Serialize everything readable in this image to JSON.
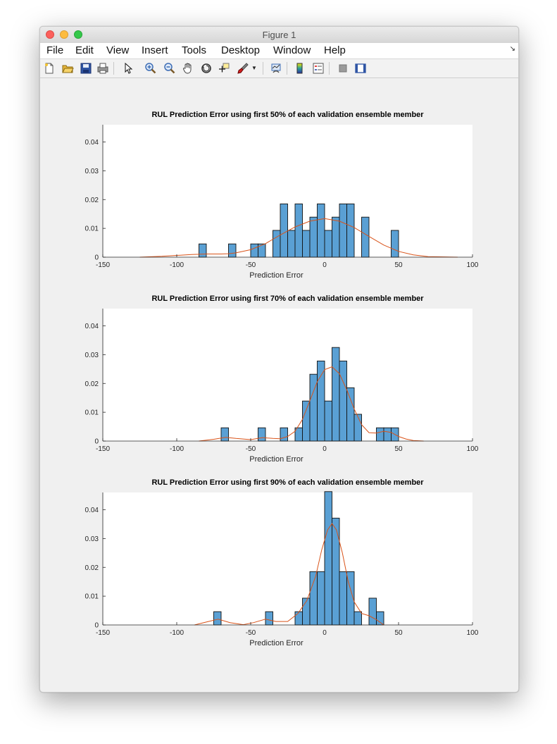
{
  "window": {
    "title": "Figure 1"
  },
  "menu": [
    "File",
    "Edit",
    "View",
    "Insert",
    "Tools",
    "Desktop",
    "Window",
    "Help"
  ],
  "toolbar": [
    "new-figure-icon",
    "open-file-icon",
    "save-icon",
    "print-icon",
    "pointer-icon",
    "zoom-in-icon",
    "zoom-out-icon",
    "pan-hand-icon",
    "rotate-3d-icon",
    "data-cursor-icon",
    "brush-icon",
    "brush-dropdown-icon",
    "link-plot-icon",
    "colorbar-icon",
    "legend-icon",
    "hide-plot-tools-icon",
    "show-plot-tools-icon"
  ],
  "colors": {
    "bar_fill": "#5aa0d4",
    "bar_edge": "#111111",
    "density_line": "#d95319",
    "axes_bg": "#ffffff",
    "figure_bg": "#f0f0f0"
  },
  "chart_data": [
    {
      "type": "bar",
      "title": "RUL Prediction Error using first 50% of each validation ensemble member",
      "xlabel": "Prediction Error",
      "ylabel": "",
      "xlim": [
        -150,
        100
      ],
      "ylim": [
        0,
        0.046
      ],
      "xticks": [
        "-150",
        "-100",
        "-50",
        "0",
        "50",
        "100"
      ],
      "yticks": [
        "0",
        "0.01",
        "0.02",
        "0.03",
        "0.04"
      ],
      "bin_width": 5,
      "bins": [
        {
          "x0": -85,
          "x1": -80,
          "value": 0.0046
        },
        {
          "x0": -65,
          "x1": -60,
          "value": 0.0046
        },
        {
          "x0": -50,
          "x1": -45,
          "value": 0.0046
        },
        {
          "x0": -45,
          "x1": -40,
          "value": 0.0046
        },
        {
          "x0": -35,
          "x1": -30,
          "value": 0.0093
        },
        {
          "x0": -30,
          "x1": -25,
          "value": 0.0185
        },
        {
          "x0": -25,
          "x1": -20,
          "value": 0.0093
        },
        {
          "x0": -20,
          "x1": -15,
          "value": 0.0185
        },
        {
          "x0": -15,
          "x1": -10,
          "value": 0.0093
        },
        {
          "x0": -10,
          "x1": -5,
          "value": 0.0139
        },
        {
          "x0": -5,
          "x1": 0,
          "value": 0.0185
        },
        {
          "x0": 0,
          "x1": 5,
          "value": 0.0093
        },
        {
          "x0": 5,
          "x1": 10,
          "value": 0.0139
        },
        {
          "x0": 10,
          "x1": 15,
          "value": 0.0185
        },
        {
          "x0": 15,
          "x1": 20,
          "value": 0.0185
        },
        {
          "x0": 25,
          "x1": 30,
          "value": 0.0139
        },
        {
          "x0": 45,
          "x1": 50,
          "value": 0.0093
        }
      ],
      "density": {
        "x": [
          -125,
          -110,
          -100,
          -90,
          -80,
          -70,
          -65,
          -60,
          -50,
          -40,
          -30,
          -20,
          -10,
          0,
          10,
          20,
          30,
          40,
          50,
          60,
          70,
          80,
          90
        ],
        "y": [
          0,
          0.0003,
          0.0006,
          0.0009,
          0.0011,
          0.0011,
          0.0012,
          0.0015,
          0.0026,
          0.0047,
          0.0077,
          0.0105,
          0.0125,
          0.0134,
          0.0125,
          0.0103,
          0.0072,
          0.0042,
          0.002,
          0.0008,
          0.0002,
          0.0001,
          0
        ]
      }
    },
    {
      "type": "bar",
      "title": "RUL Prediction Error using first 70% of each validation ensemble member",
      "xlabel": "Prediction Error",
      "ylabel": "",
      "xlim": [
        -150,
        100
      ],
      "ylim": [
        0,
        0.046
      ],
      "xticks": [
        "-150",
        "-100",
        "-50",
        "0",
        "50",
        "100"
      ],
      "yticks": [
        "0",
        "0.01",
        "0.02",
        "0.03",
        "0.04"
      ],
      "bin_width": 5,
      "bins": [
        {
          "x0": -70,
          "x1": -65,
          "value": 0.0046
        },
        {
          "x0": -45,
          "x1": -40,
          "value": 0.0046
        },
        {
          "x0": -30,
          "x1": -25,
          "value": 0.0046
        },
        {
          "x0": -20,
          "x1": -15,
          "value": 0.0046
        },
        {
          "x0": -15,
          "x1": -10,
          "value": 0.0139
        },
        {
          "x0": -10,
          "x1": -5,
          "value": 0.0232
        },
        {
          "x0": -5,
          "x1": 0,
          "value": 0.0278
        },
        {
          "x0": 0,
          "x1": 5,
          "value": 0.0139
        },
        {
          "x0": 5,
          "x1": 10,
          "value": 0.0325
        },
        {
          "x0": 10,
          "x1": 15,
          "value": 0.0278
        },
        {
          "x0": 15,
          "x1": 20,
          "value": 0.0185
        },
        {
          "x0": 20,
          "x1": 25,
          "value": 0.0093
        },
        {
          "x0": 35,
          "x1": 40,
          "value": 0.0046
        },
        {
          "x0": 40,
          "x1": 45,
          "value": 0.0046
        },
        {
          "x0": 45,
          "x1": 50,
          "value": 0.0046
        }
      ],
      "density": {
        "x": [
          -85,
          -75,
          -67,
          -60,
          -50,
          -42,
          -35,
          -30,
          -25,
          -20,
          -15,
          -10,
          -5,
          0,
          5,
          10,
          15,
          20,
          25,
          30,
          35,
          40,
          45,
          50,
          55,
          60,
          67
        ],
        "y": [
          0,
          0.0006,
          0.0013,
          0.0009,
          0.0005,
          0.0012,
          0.0009,
          0.0008,
          0.0016,
          0.0034,
          0.0075,
          0.014,
          0.0206,
          0.0248,
          0.0258,
          0.0234,
          0.0178,
          0.0111,
          0.0057,
          0.0029,
          0.0028,
          0.0034,
          0.003,
          0.0016,
          0.0007,
          0.0002,
          0
        ]
      }
    },
    {
      "type": "bar",
      "title": "RUL Prediction Error using first 90% of each validation ensemble member",
      "xlabel": "Prediction Error",
      "ylabel": "",
      "xlim": [
        -150,
        100
      ],
      "ylim": [
        0,
        0.046
      ],
      "xticks": [
        "-150",
        "-100",
        "-50",
        "0",
        "50",
        "100"
      ],
      "yticks": [
        "0",
        "0.01",
        "0.02",
        "0.03",
        "0.04"
      ],
      "bin_width": 5,
      "bins": [
        {
          "x0": -75,
          "x1": -70,
          "value": 0.0046
        },
        {
          "x0": -40,
          "x1": -35,
          "value": 0.0046
        },
        {
          "x0": -20,
          "x1": -15,
          "value": 0.0046
        },
        {
          "x0": -15,
          "x1": -10,
          "value": 0.0093
        },
        {
          "x0": -10,
          "x1": -5,
          "value": 0.0185
        },
        {
          "x0": -5,
          "x1": 0,
          "value": 0.0185
        },
        {
          "x0": 0,
          "x1": 5,
          "value": 0.0463
        },
        {
          "x0": 5,
          "x1": 10,
          "value": 0.0371
        },
        {
          "x0": 10,
          "x1": 15,
          "value": 0.0185
        },
        {
          "x0": 15,
          "x1": 20,
          "value": 0.0185
        },
        {
          "x0": 20,
          "x1": 25,
          "value": 0.0046
        },
        {
          "x0": 30,
          "x1": 35,
          "value": 0.0093
        },
        {
          "x0": 35,
          "x1": 40,
          "value": 0.0046
        }
      ],
      "density": {
        "x": [
          -88,
          -80,
          -72,
          -64,
          -55,
          -48,
          -40,
          -33,
          -25,
          -18,
          -12,
          -6,
          -2,
          2,
          5,
          8,
          12,
          16,
          20,
          25,
          30,
          35,
          40
        ],
        "y": [
          0,
          0.001,
          0.002,
          0.0008,
          0.0001,
          0.0008,
          0.002,
          0.0012,
          0.0012,
          0.004,
          0.0085,
          0.017,
          0.026,
          0.033,
          0.0352,
          0.033,
          0.025,
          0.015,
          0.008,
          0.004,
          0.0032,
          0.0018,
          0
        ]
      }
    }
  ]
}
